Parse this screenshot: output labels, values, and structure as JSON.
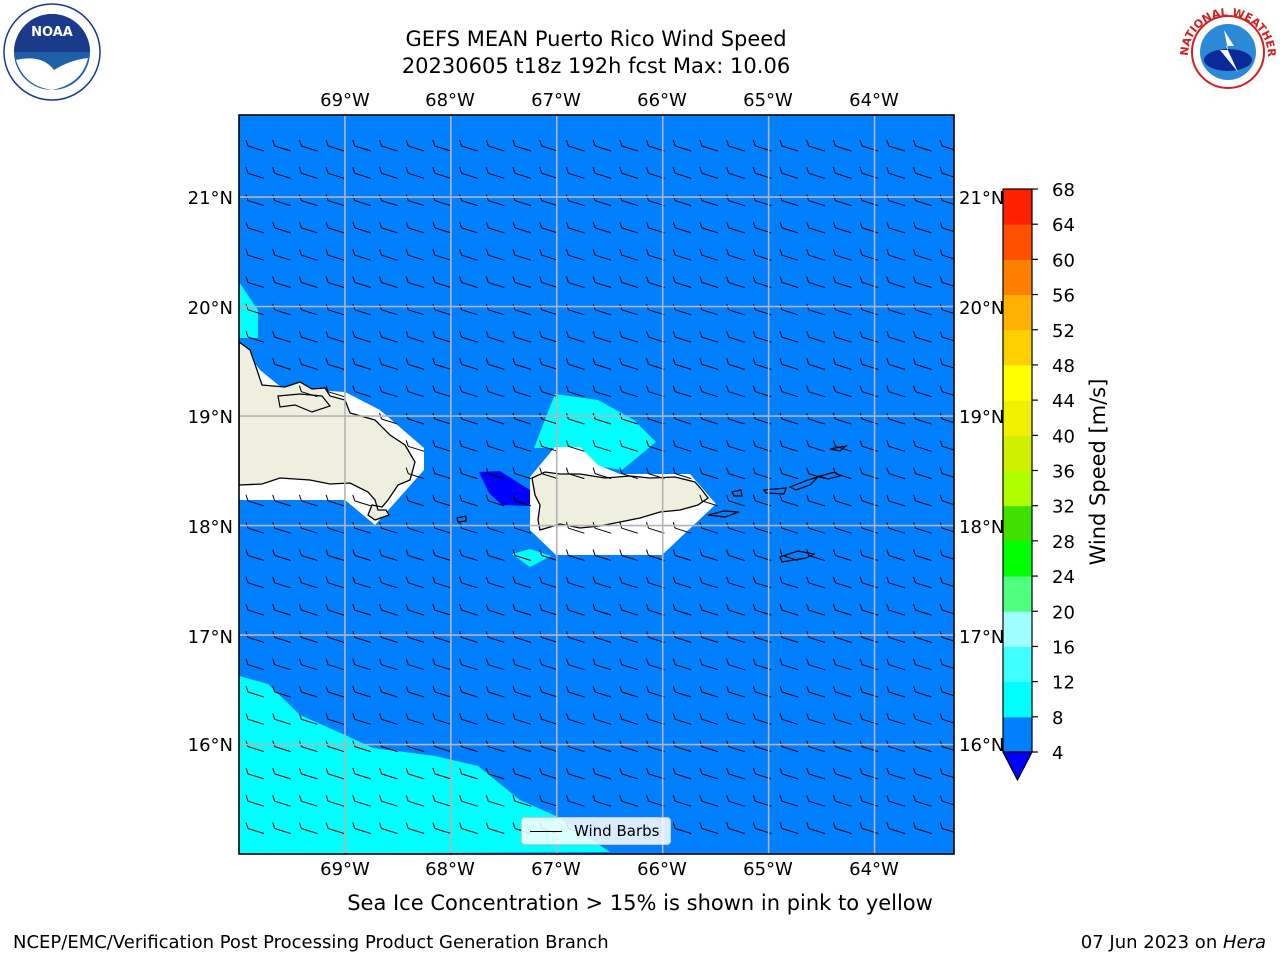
{
  "header": {
    "title_line1": "GEFS MEAN Puerto Rico Wind Speed",
    "title_line2": "20230605 t18z 192h fcst   Max: 10.06"
  },
  "logos": {
    "left": {
      "icon": "noaa-logo-icon",
      "text": "NOAA"
    },
    "right": {
      "icon": "nws-logo-icon",
      "text": "NATIONAL WEATHER SERVICE"
    }
  },
  "map": {
    "lon_labels": [
      "69°W",
      "68°W",
      "67°W",
      "66°W",
      "65°W",
      "64°W"
    ],
    "lat_labels": [
      "21°N",
      "20°N",
      "19°N",
      "18°N",
      "17°N",
      "16°N"
    ],
    "lon_values": [
      -69,
      -68,
      -67,
      -66,
      -65,
      -64
    ],
    "lat_values": [
      21,
      20,
      19,
      18,
      17,
      16
    ],
    "lon_range": [
      -70,
      -63.25
    ],
    "lat_range": [
      15,
      21.75
    ],
    "ocean_color": "#0080ff",
    "land_color": "#efefdf"
  },
  "colorbar": {
    "title": "Wind Speed [m/s]",
    "ticks": [
      "4",
      "8",
      "12",
      "16",
      "20",
      "24",
      "28",
      "32",
      "36",
      "40",
      "44",
      "48",
      "52",
      "56",
      "60",
      "64",
      "68"
    ],
    "colors": [
      "#0080ff",
      "#00ffff",
      "#40ffff",
      "#a0ffff",
      "#50ff80",
      "#00ff00",
      "#40e000",
      "#b0ff00",
      "#d0f000",
      "#f0f000",
      "#ffff00",
      "#ffd000",
      "#ffb000",
      "#ff8000",
      "#ff5000",
      "#ff2000"
    ],
    "under_color": "#0000ff"
  },
  "legend": {
    "label": "Wind Barbs"
  },
  "note": "Sea Ice Concentration > 15% is shown in pink to yellow",
  "footer": {
    "left": "NCEP/EMC/Verification Post Processing Product Generation Branch",
    "date": "07 Jun 2023 on ",
    "machine": "Hera"
  }
}
